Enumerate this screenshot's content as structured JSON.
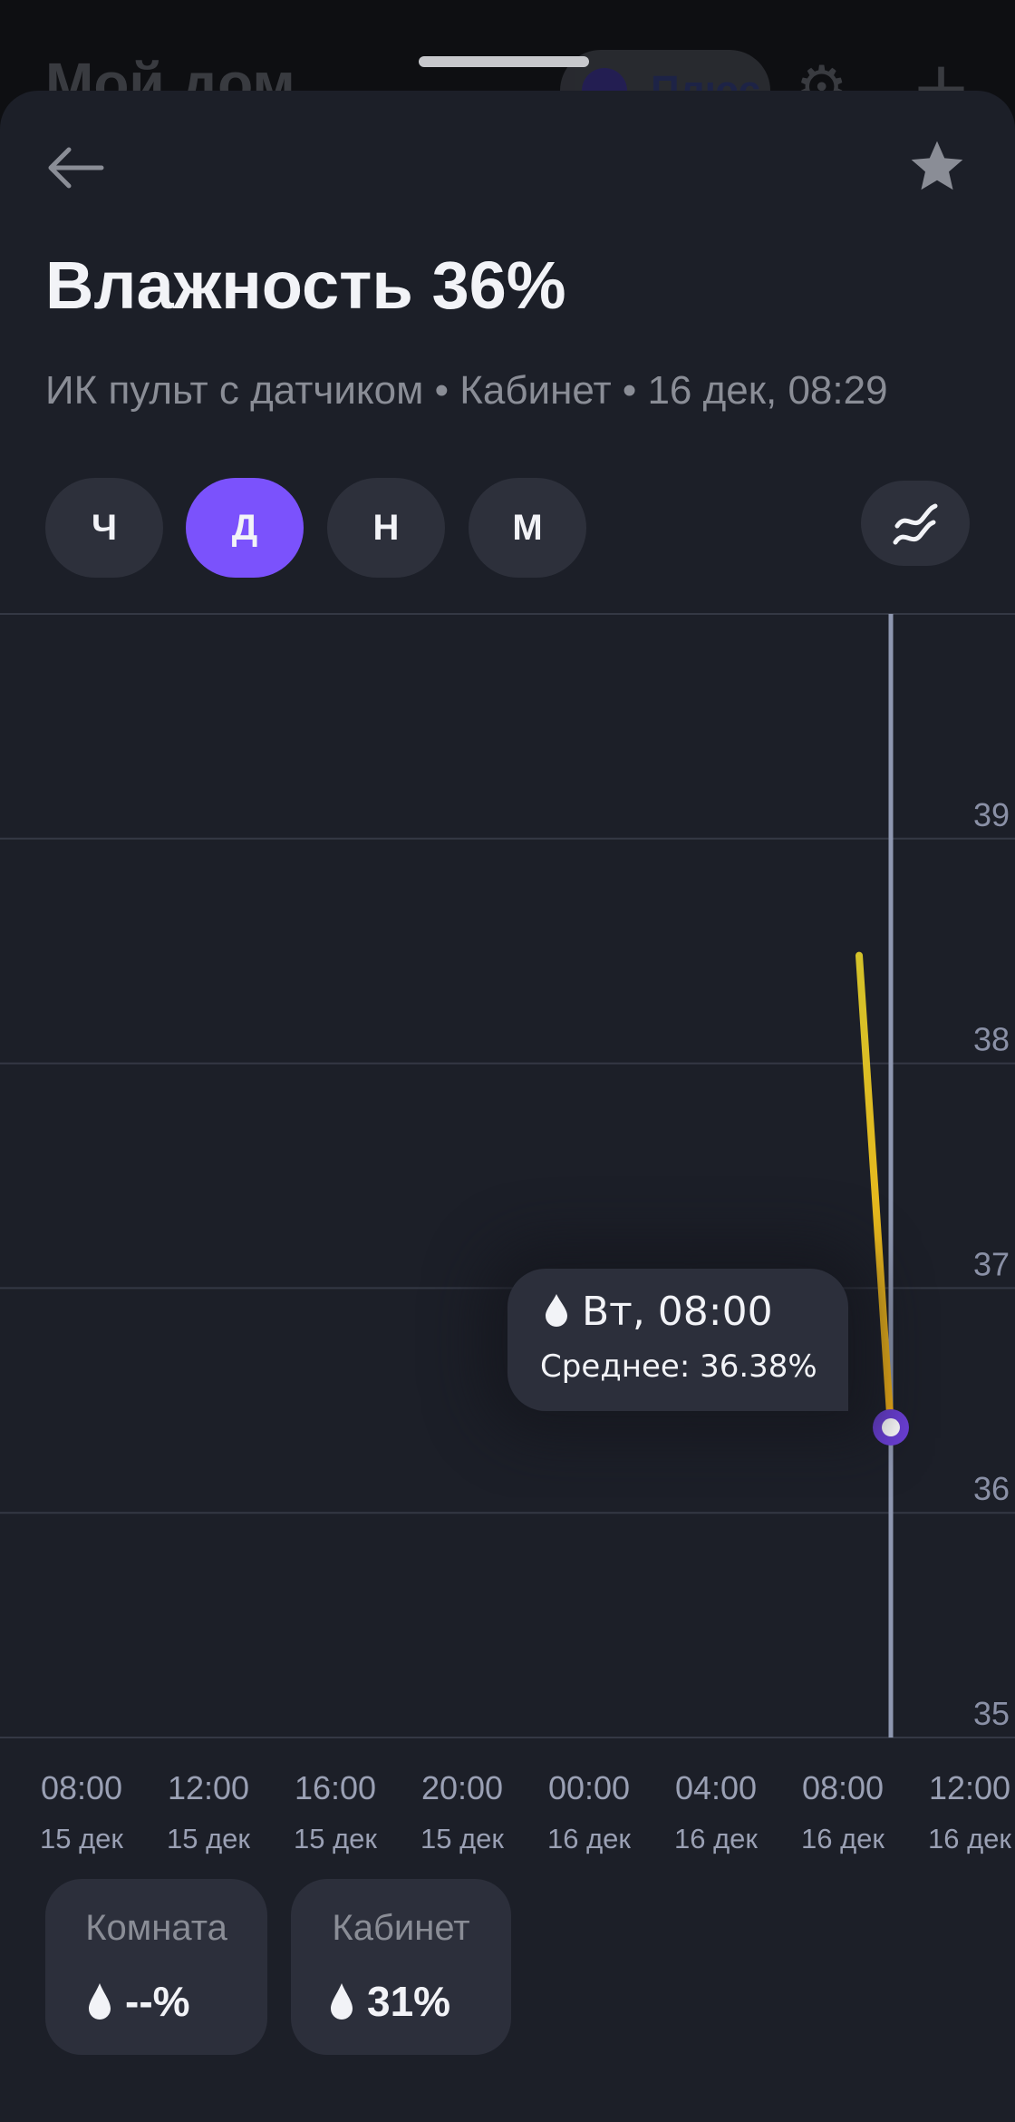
{
  "background": {
    "title": "Мой дом",
    "plus_label": "Плюс"
  },
  "header": {
    "back_icon": "arrow-left-icon",
    "favorite_icon": "star-icon",
    "title": "Влажность 36%",
    "subtitle": "ИК пульт с датчиком • Кабинет • 16 дек, 08:29"
  },
  "periods": [
    {
      "label": "Ч",
      "active": false
    },
    {
      "label": "Д",
      "active": true
    },
    {
      "label": "Н",
      "active": false
    },
    {
      "label": "М",
      "active": false
    }
  ],
  "mode_icon": "approx-wave-icon",
  "colors": {
    "accent": "#7b52fc",
    "line_top": "#d4c22a",
    "line_bottom": "#f5b014",
    "point": "#6b3fd6"
  },
  "chart_data": {
    "type": "line",
    "ylim": [
      35,
      40
    ],
    "yticks": [
      "39",
      "38",
      "37",
      "36",
      "35"
    ],
    "xticks": [
      {
        "time": "08:00",
        "date": "15 дек"
      },
      {
        "time": "12:00",
        "date": "15 дек"
      },
      {
        "time": "16:00",
        "date": "15 дек"
      },
      {
        "time": "20:00",
        "date": "15 дек"
      },
      {
        "time": "00:00",
        "date": "16 дек"
      },
      {
        "time": "04:00",
        "date": "16 дек"
      },
      {
        "time": "08:00",
        "date": "16 дек"
      },
      {
        "time": "12:00",
        "date": "16 дек"
      }
    ],
    "points": [
      {
        "x": "16 дек 07:00",
        "y": 38.48
      },
      {
        "x": "16 дек 08:00",
        "y": 36.38
      }
    ],
    "grid": true,
    "selected_index": 1,
    "tooltip": {
      "icon": "droplet-icon",
      "time": "Вт, 08:00",
      "value": "Среднее: 36.38%"
    }
  },
  "rooms": [
    {
      "name": "Комната",
      "value": "--%",
      "icon": "droplet-icon"
    },
    {
      "name": "Кабинет",
      "value": "31%",
      "icon": "droplet-icon"
    }
  ]
}
